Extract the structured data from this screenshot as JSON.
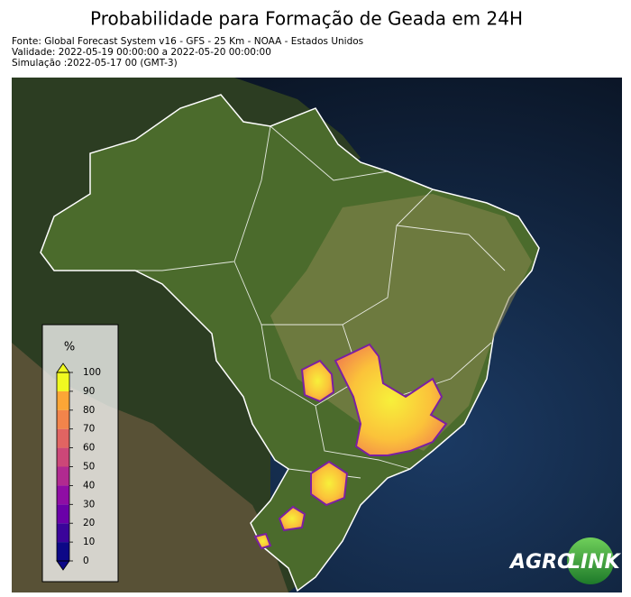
{
  "title": "Probabilidade para Formação de Geada em 24H",
  "source_lines": [
    "Fonte: Global Forecast System v16 - GFS - 25 Km - NOAA - Estados Unidos",
    "Validade: 2022-05-19 00:00:00 a 2022-05-20 00:00:00",
    "Simulação :2022-05-17 00 (GMT-3)"
  ],
  "colorbar": {
    "label": "%",
    "lim": [
      0,
      100
    ],
    "ticks": [
      0,
      10,
      20,
      30,
      40,
      50,
      60,
      70,
      80,
      90,
      100
    ],
    "colors": [
      "#0d0887",
      "#3a049a",
      "#6a00a8",
      "#8f0da4",
      "#b12a90",
      "#cc4778",
      "#e16462",
      "#f2844b",
      "#fca636",
      "#f0f921"
    ]
  },
  "logo": {
    "left": "AGRO",
    "right": "LINK"
  }
}
